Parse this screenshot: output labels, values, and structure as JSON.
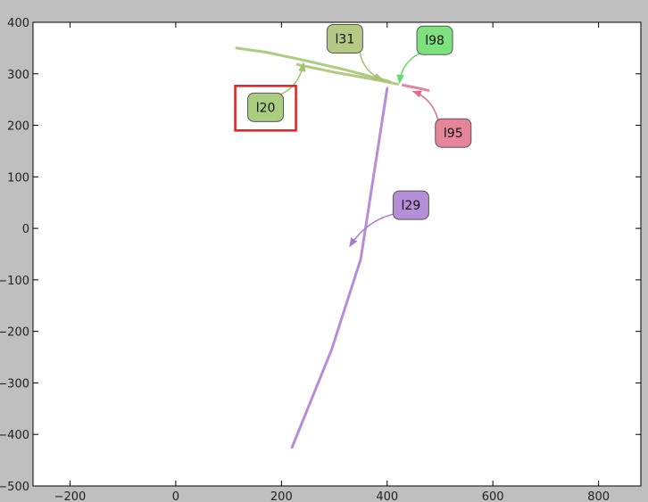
{
  "chart_data": {
    "type": "line",
    "xlim": [
      -270,
      880
    ],
    "ylim": [
      -500,
      400
    ],
    "x_ticks": [
      -200,
      0,
      200,
      400,
      600,
      800
    ],
    "y_ticks": [
      400,
      300,
      200,
      100,
      0,
      -100,
      -200,
      -300,
      -400,
      -500
    ],
    "x_tick_labels": [
      "−200",
      "0",
      "200",
      "400",
      "600",
      "800"
    ],
    "y_tick_labels": [
      "400",
      "300",
      "200",
      "100",
      "0",
      "−100",
      "−200",
      "−300",
      "−400",
      "−500"
    ],
    "grid": false,
    "series": [
      {
        "name": "l20",
        "color": "#9bc46a",
        "label_pos": [
          170,
          235
        ],
        "anchor": [
          245,
          325
        ],
        "highlighted": true,
        "points": [
          [
            115,
            350
          ],
          [
            170,
            342
          ],
          [
            240,
            327
          ],
          [
            320,
            308
          ],
          [
            405,
            285
          ]
        ]
      },
      {
        "name": "l31",
        "color": "#a8c070",
        "label_pos": [
          320,
          368
        ],
        "anchor": [
          395,
          285
        ],
        "highlighted": false,
        "points": [
          [
            230,
            318
          ],
          [
            300,
            303
          ],
          [
            360,
            292
          ],
          [
            420,
            280
          ]
        ]
      },
      {
        "name": "l98",
        "color": "#66dd66",
        "label_pos": [
          490,
          365
        ],
        "anchor": [
          420,
          278
        ],
        "highlighted": false,
        "points": []
      },
      {
        "name": "l95",
        "color": "#e07088",
        "label_pos": [
          525,
          185
        ],
        "anchor": [
          445,
          270
        ],
        "highlighted": false,
        "points": [
          [
            430,
            278
          ],
          [
            460,
            272
          ],
          [
            478,
            268
          ]
        ]
      },
      {
        "name": "l29",
        "color": "#a87ad0",
        "label_pos": [
          445,
          45
        ],
        "anchor": [
          325,
          -38
        ],
        "highlighted": false,
        "points": [
          [
            400,
            272
          ],
          [
            350,
            -60
          ],
          [
            295,
            -235
          ],
          [
            220,
            -425
          ]
        ]
      }
    ]
  }
}
